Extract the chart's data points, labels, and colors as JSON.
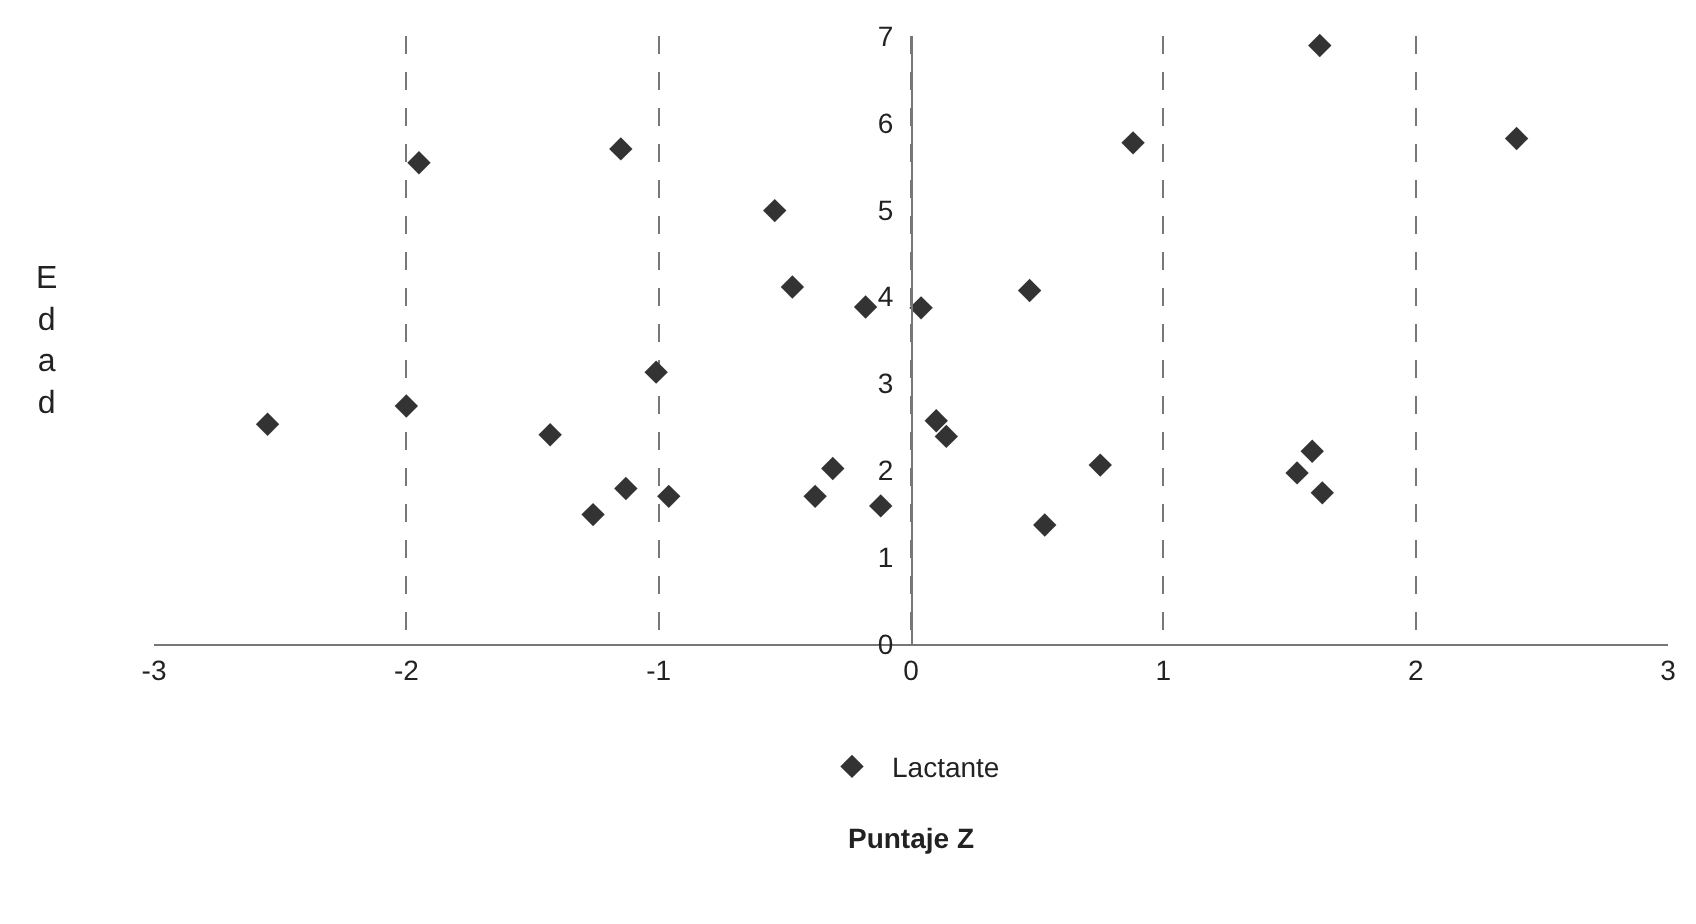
{
  "chart_data": {
    "type": "scatter",
    "xlabel": "Puntaje Z",
    "ylabel": "Edad",
    "x": [
      -2.55,
      -2.0,
      -1.95,
      -1.15,
      -1.43,
      -1.26,
      -1.13,
      -1.01,
      -0.96,
      -0.54,
      -0.47,
      -0.18,
      -0.31,
      -0.38,
      -0.12,
      0.1,
      0.14,
      0.04,
      0.47,
      0.88,
      0.75,
      0.53,
      1.62,
      2.4,
      1.59,
      1.53,
      1.63
    ],
    "series": [
      {
        "name": "Lactante",
        "color": "#333333",
        "values": [
          2.53,
          2.74,
          5.54,
          5.7,
          2.41,
          1.49,
          1.79,
          3.13,
          1.7,
          4.99,
          4.11,
          3.88,
          2.02,
          1.7,
          1.59,
          2.57,
          2.39,
          3.87,
          4.07,
          5.77,
          2.06,
          1.37,
          6.89,
          5.82,
          2.22,
          1.97,
          1.74
        ]
      }
    ],
    "xlim": [
      -3,
      3
    ],
    "xticks": [
      -3,
      -2,
      -1,
      0,
      1,
      2,
      3
    ],
    "ylim": [
      0,
      7
    ],
    "yticks": [
      0,
      1,
      2,
      3,
      4,
      5,
      6,
      7
    ],
    "grid": "x",
    "legend": "bottom",
    "marker": "diamond"
  }
}
